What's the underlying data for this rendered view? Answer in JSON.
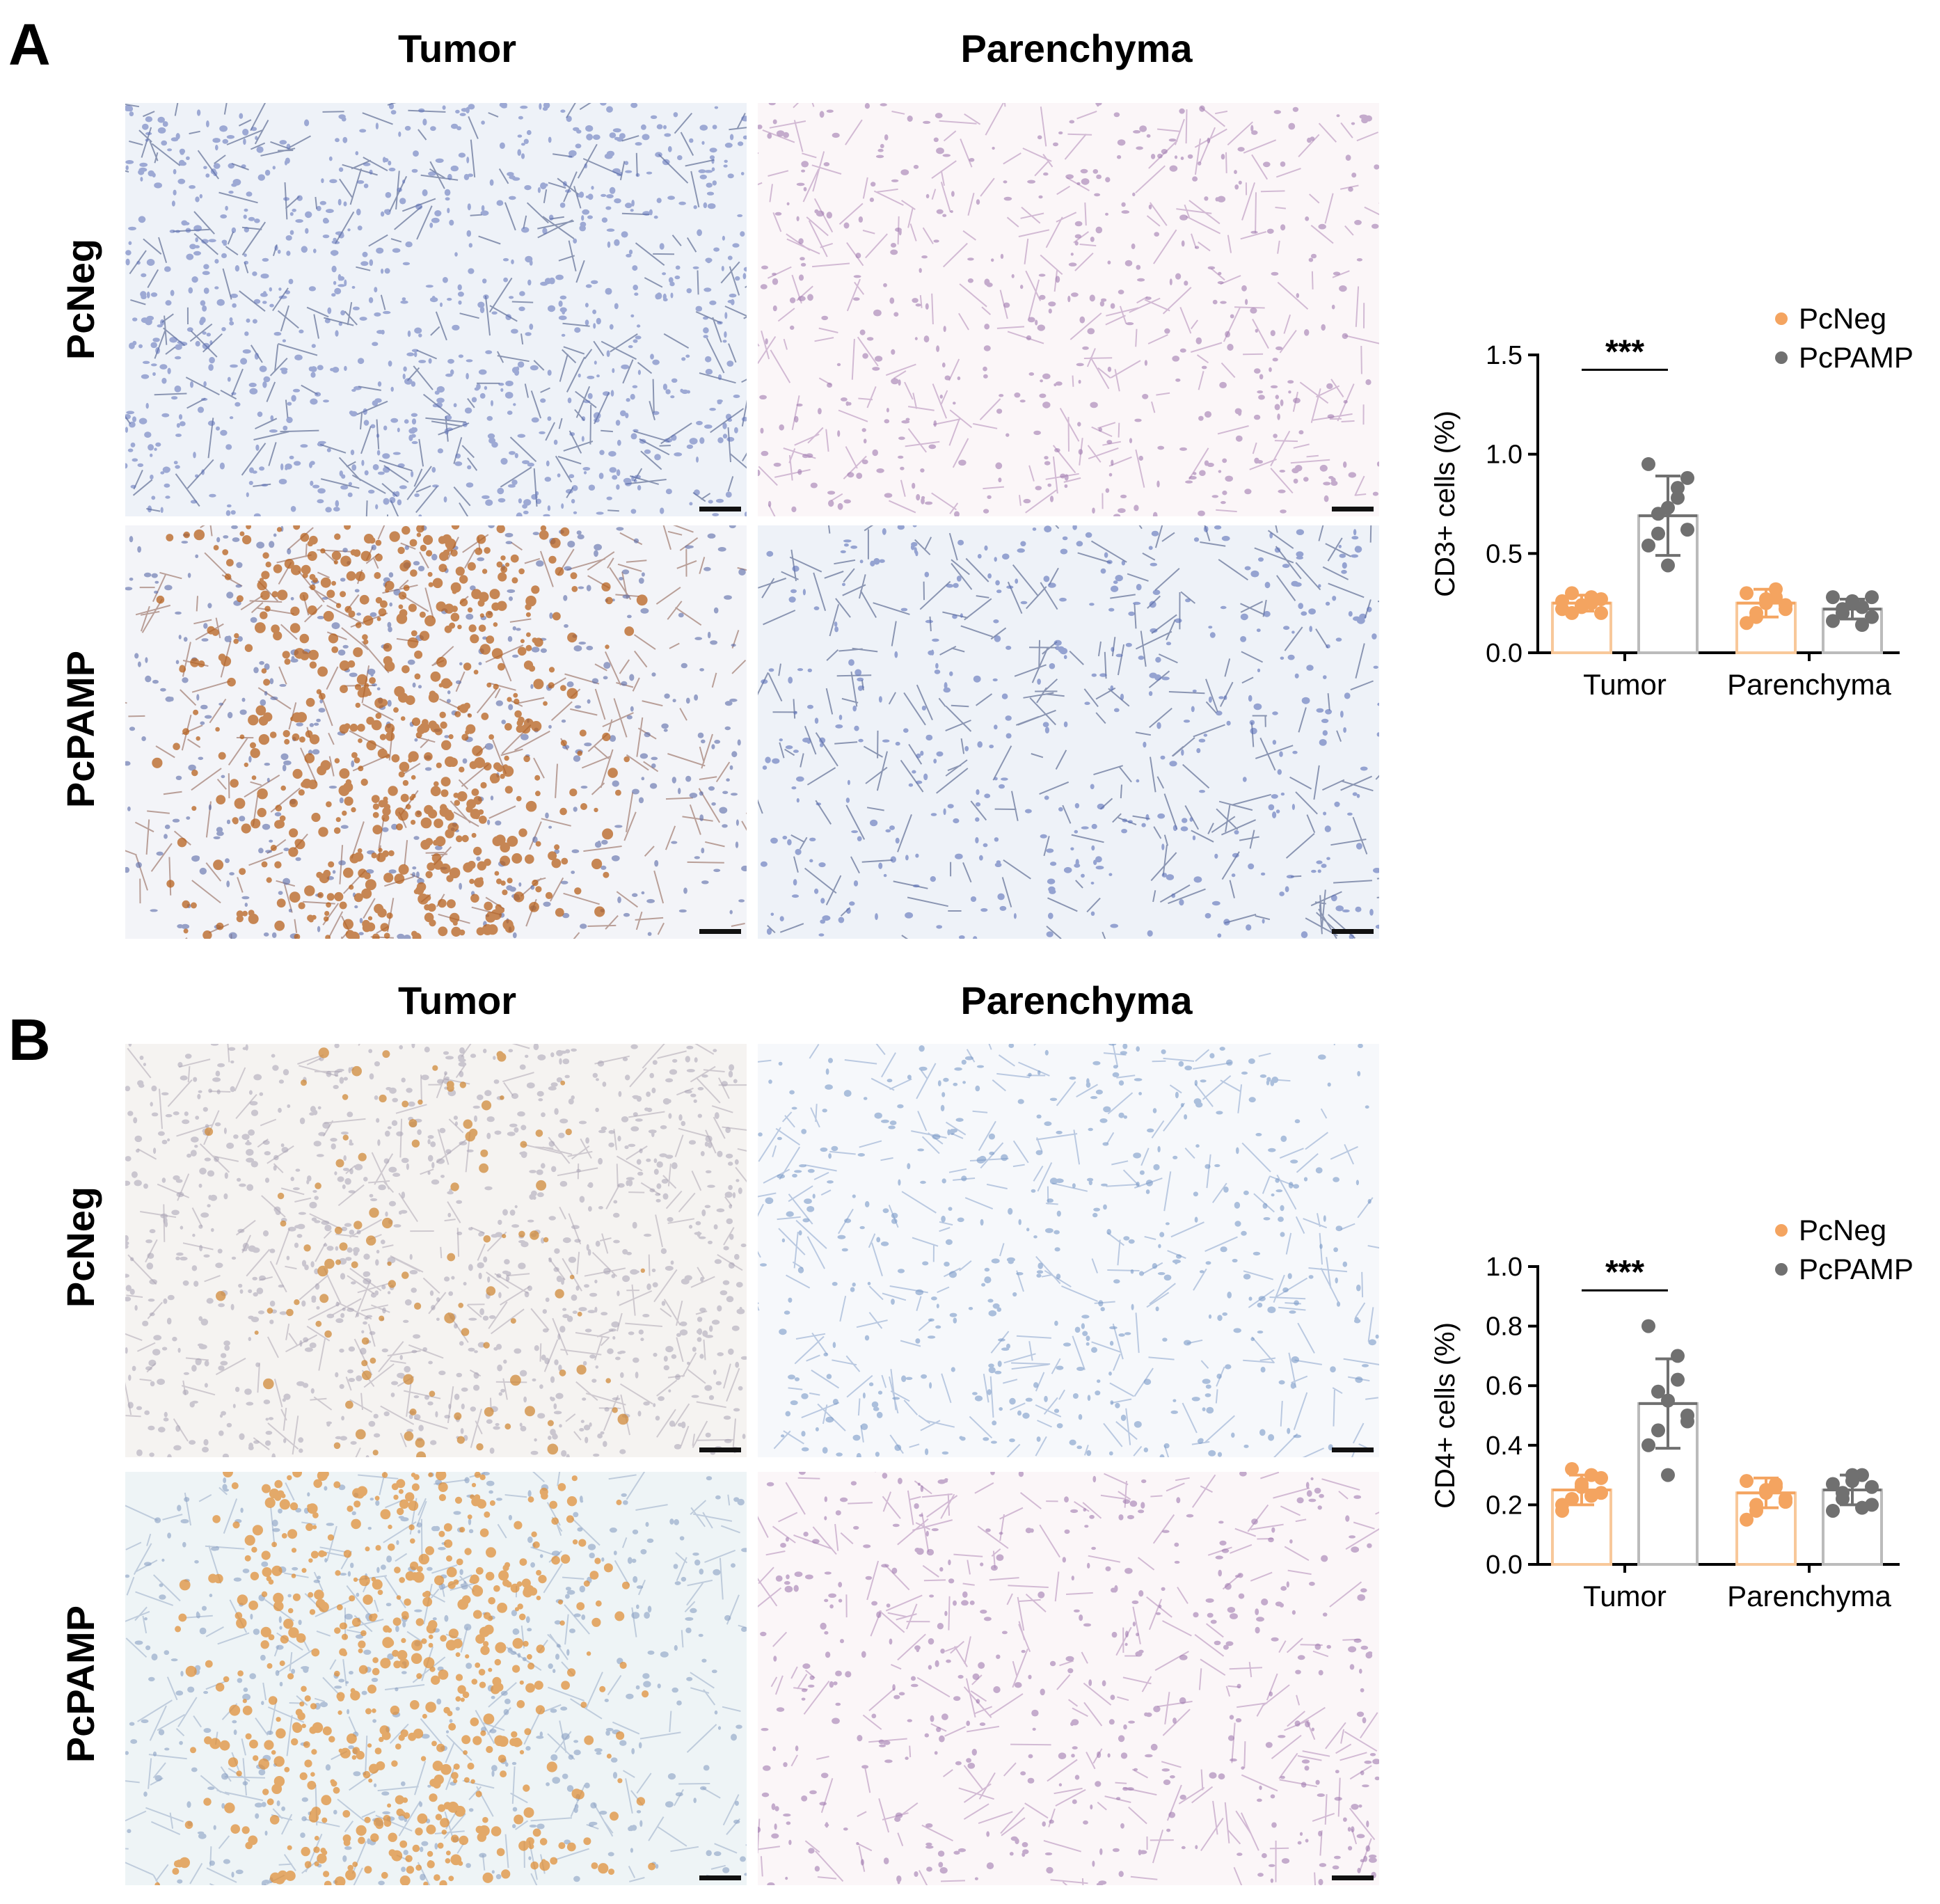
{
  "panels": [
    {
      "letter": "A",
      "col_headers": [
        "Tumor",
        "Parenchyma"
      ],
      "row_headers": [
        "PcNeg",
        "PcPAMP"
      ],
      "images": [
        {
          "name": "A-pcneg-tumor",
          "tissue": "tumor",
          "stain": "blue",
          "intensity": 0.05
        },
        {
          "name": "A-pcneg-parenchyma",
          "tissue": "alveolar",
          "stain": "pink",
          "intensity": 0.08
        },
        {
          "name": "A-pcpamp-tumor",
          "tissue": "alveolar-infiltrate",
          "stain": "brown",
          "intensity": 0.9
        },
        {
          "name": "A-pcpamp-parenchyma",
          "tissue": "alveolar",
          "stain": "blue",
          "intensity": 0.1
        }
      ]
    },
    {
      "letter": "B",
      "col_headers": [
        "Tumor",
        "Parenchyma"
      ],
      "row_headers": [
        "PcNeg",
        "PcPAMP"
      ],
      "images": [
        {
          "name": "B-pcneg-tumor",
          "tissue": "tumor-light",
          "stain": "gray",
          "intensity": 0.15
        },
        {
          "name": "B-pcneg-parenchyma",
          "tissue": "alveolar",
          "stain": "lightblue",
          "intensity": 0.05
        },
        {
          "name": "B-pcpamp-tumor",
          "tissue": "alveolar-infiltrate",
          "stain": "orange",
          "intensity": 0.8
        },
        {
          "name": "B-pcpamp-parenchyma",
          "tissue": "alveolar",
          "stain": "pink",
          "intensity": 0.2
        }
      ]
    }
  ],
  "chart_data": [
    {
      "type": "bar",
      "ylabel": "CD3+ cells (%)",
      "ylim": [
        0,
        1.5
      ],
      "yticks": [
        "0.0",
        "0.5",
        "1.0",
        "1.5"
      ],
      "categories": [
        "Tumor",
        "Parenchyma"
      ],
      "significance": "***",
      "legend_position": "top-right",
      "series": [
        {
          "name": "PcNeg",
          "color": "#f4a460",
          "values": [
            0.25,
            0.25
          ],
          "sd": [
            0.04,
            0.07
          ],
          "points": [
            [
              0.22,
              0.2,
              0.24,
              0.28,
              0.2,
              0.26,
              0.3,
              0.23,
              0.25,
              0.27
            ],
            [
              0.15,
              0.2,
              0.25,
              0.28,
              0.22,
              0.3,
              0.18,
              0.27,
              0.32,
              0.24
            ]
          ]
        },
        {
          "name": "PcPAMP",
          "color": "#707070",
          "values": [
            0.69,
            0.22
          ],
          "sd": [
            0.2,
            0.05
          ],
          "points": [
            [
              0.54,
              0.6,
              0.73,
              0.83,
              0.62,
              0.95,
              0.7,
              0.44,
              0.78,
              0.88
            ],
            [
              0.16,
              0.2,
              0.26,
              0.23,
              0.18,
              0.28,
              0.22,
              0.25,
              0.14,
              0.28
            ]
          ]
        }
      ]
    },
    {
      "type": "bar",
      "ylabel": "CD4+ cells (%)",
      "ylim": [
        0,
        1.0
      ],
      "yticks": [
        "0.0",
        "0.2",
        "0.4",
        "0.6",
        "0.8",
        "1.0"
      ],
      "categories": [
        "Tumor",
        "Parenchyma"
      ],
      "significance": "***",
      "legend_position": "top-right",
      "series": [
        {
          "name": "PcNeg",
          "color": "#f4a460",
          "values": [
            0.25,
            0.24
          ],
          "sd": [
            0.05,
            0.05
          ],
          "points": [
            [
              0.18,
              0.22,
              0.27,
              0.3,
              0.24,
              0.2,
              0.32,
              0.26,
              0.23,
              0.29
            ],
            [
              0.15,
              0.2,
              0.25,
              0.27,
              0.22,
              0.28,
              0.18,
              0.24,
              0.26,
              0.21
            ]
          ]
        },
        {
          "name": "PcPAMP",
          "color": "#707070",
          "values": [
            0.54,
            0.25
          ],
          "sd": [
            0.15,
            0.05
          ],
          "points": [
            [
              0.4,
              0.45,
              0.55,
              0.62,
              0.48,
              0.8,
              0.58,
              0.3,
              0.7,
              0.5
            ],
            [
              0.18,
              0.22,
              0.28,
              0.3,
              0.2,
              0.27,
              0.24,
              0.3,
              0.19,
              0.26
            ]
          ]
        }
      ]
    }
  ]
}
